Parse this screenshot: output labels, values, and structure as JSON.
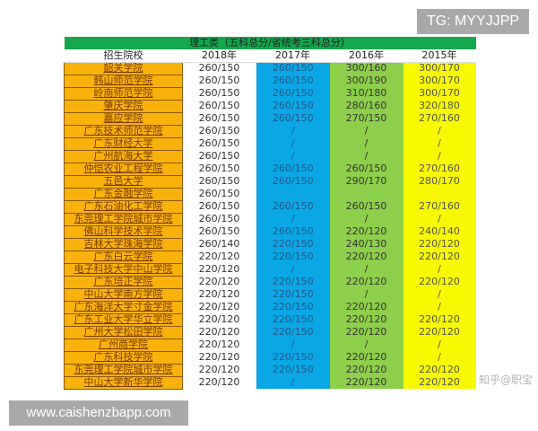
{
  "overlays": {
    "top_right": "TG: MYYJJPP",
    "bottom_left": "www.caishenzbapp.com",
    "watermark": "知乎@职宝"
  },
  "colors": {
    "title_bg": "#12a84b",
    "name_bg": "#f9b20c",
    "col2017": "#0aa6e6",
    "col2016": "#8ccf4a",
    "col2015": "#f8f800"
  },
  "table": {
    "title": "理工类（五科总分/省统考三科总分）",
    "headers": [
      "招生院校",
      "2018年",
      "2017年",
      "2016年",
      "2015年"
    ],
    "rows": [
      [
        "韶关学院",
        "260/150",
        "260/150",
        "300/160",
        "300/170"
      ],
      [
        "韩山师范学院",
        "260/150",
        "260/150",
        "300/190",
        "300/170"
      ],
      [
        "岭南师范学院",
        "260/150",
        "260/150",
        "310/180",
        "300/170"
      ],
      [
        "肇庆学院",
        "260/150",
        "260/150",
        "280/160",
        "320/180"
      ],
      [
        "嘉应学院",
        "260/150",
        "260/150",
        "270/150",
        "270/160"
      ],
      [
        "广东技术师范学院",
        "260/150",
        "/",
        "/",
        "/"
      ],
      [
        "广东财经大学",
        "260/150",
        "/",
        "/",
        "/"
      ],
      [
        "广州航海大学",
        "260/150",
        "/",
        "/",
        "/"
      ],
      [
        "仲恺农业工程学院",
        "260/150",
        "260/150",
        "260/150",
        "270/160"
      ],
      [
        "五邑大学",
        "260/150",
        "260/150",
        "290/170",
        "280/170"
      ],
      [
        "广东金融学院",
        "260/150",
        "",
        "",
        ""
      ],
      [
        "广东石油化工学院",
        "260/150",
        "260/150",
        "260/150",
        "270/160"
      ],
      [
        "东莞理工学院城市学院",
        "260/150",
        "/",
        "/",
        "/"
      ],
      [
        "佛山科学技术学院",
        "260/150",
        "260/150",
        "220/120",
        "240/140"
      ],
      [
        "吉林大学珠海学院",
        "260/140",
        "220/150",
        "240/130",
        "220/120"
      ],
      [
        "广东白云学院",
        "220/120",
        "220/150",
        "220/120",
        "220/120"
      ],
      [
        "电子科技大学中山学院",
        "220/120",
        "/",
        "/",
        "/"
      ],
      [
        "广东培正学院",
        "220/120",
        "220/150",
        "220/120",
        "220/120"
      ],
      [
        "中山大学南方学院",
        "220/120",
        "220/150",
        "/",
        "/"
      ],
      [
        "广东海洋大学寸金学院",
        "220/120",
        "220/150",
        "220/120",
        "/"
      ],
      [
        "广东工业大学华立学院",
        "220/120",
        "220/150",
        "220/120",
        "220/120"
      ],
      [
        "广州大学松田学院",
        "220/120",
        "220/150",
        "220/120",
        "220/120"
      ],
      [
        "广州商学院",
        "220/120",
        "/",
        "/",
        "/"
      ],
      [
        "广东科技学院",
        "220/120",
        "220/150",
        "220/120",
        "/"
      ],
      [
        "东莞理工学院城市学院",
        "220/120",
        "220/150",
        "220/120",
        "220/120"
      ],
      [
        "中山大学新华学院",
        "220/120",
        "/",
        "220/120",
        "220/120"
      ]
    ]
  }
}
